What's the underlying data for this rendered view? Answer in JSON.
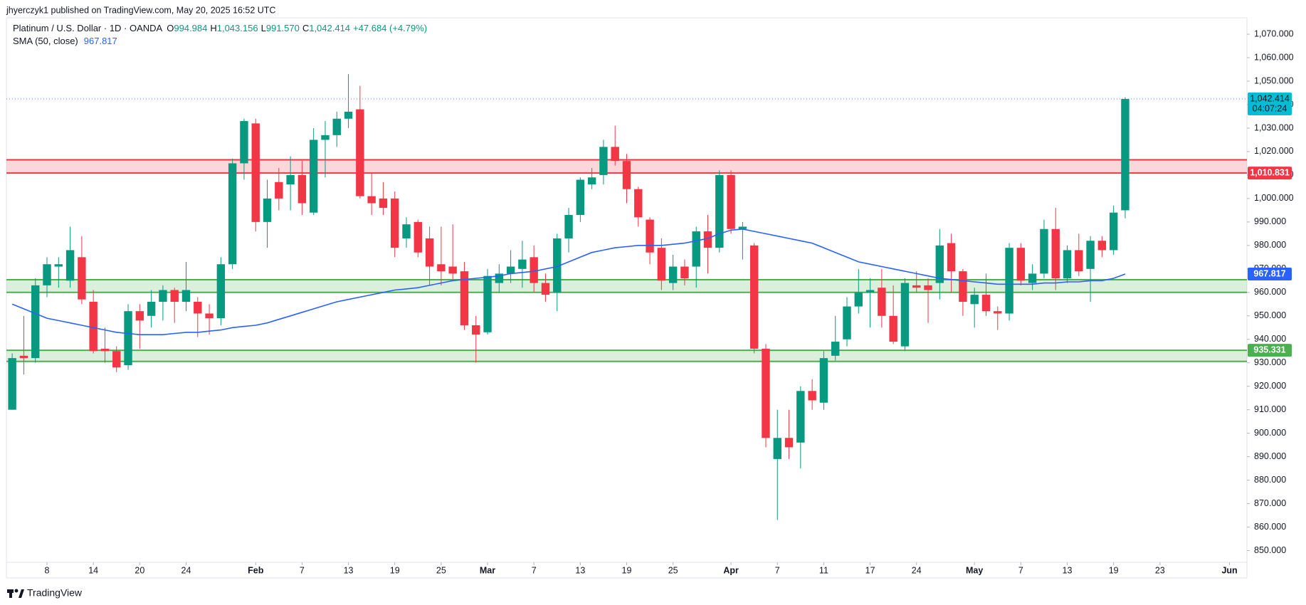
{
  "publisher_line": "jhyerczyk1 published on TradingView.com, May 20, 2025 16:52 UTC",
  "footer": "TradingView",
  "chart_data": {
    "type": "candlestick",
    "title": "Platinum / U.S. Dollar · 1D · OANDA",
    "ohlc_legend": [
      {
        "key": "O",
        "value": "994.984"
      },
      {
        "key": "H",
        "value": "1,043.156"
      },
      {
        "key": "L",
        "value": "991.570"
      },
      {
        "key": "C",
        "value": "1,042.414"
      }
    ],
    "change_label": "+47.684 (+4.79%)",
    "up_color": "#089981",
    "down_color": "#f23645",
    "open": [
      910,
      933,
      932,
      963,
      971,
      965,
      975,
      956,
      936,
      935,
      929,
      952,
      950,
      956,
      961,
      956,
      956,
      951,
      949,
      972,
      1015,
      1032,
      990,
      1007,
      1006,
      1010,
      994,
      1025,
      1027,
      1034,
      1038,
      1001,
      1000,
      1000,
      983,
      990,
      983,
      972,
      971,
      969,
      946,
      943,
      964,
      968,
      970,
      975,
      964,
      960,
      983,
      993,
      1006,
      1010,
      1022,
      1016,
      1004,
      991,
      979,
      964,
      971,
      971,
      986,
      979,
      1010,
      987,
      980,
      936,
      889,
      898,
      896,
      918,
      913,
      933,
      940,
      954,
      960,
      962,
      950,
      937,
      963,
      963,
      964,
      981,
      969,
      955,
      959,
      952,
      951,
      979,
      964,
      968,
      987,
      966,
      978,
      970,
      982,
      978,
      994.984
    ],
    "high": [
      934,
      950,
      966,
      975,
      975,
      988,
      984,
      961,
      945,
      937,
      955,
      955,
      961,
      963,
      962,
      973,
      958,
      955,
      975,
      1017,
      1034,
      1034,
      1008,
      1013,
      1018,
      1016,
      1030,
      1033,
      1037,
      1053,
      1048,
      1011,
      1007,
      1003,
      992,
      991,
      988,
      988,
      989,
      973,
      950,
      970,
      972,
      978,
      982,
      980,
      968,
      985,
      996,
      1009,
      1013,
      1025,
      1031,
      1019,
      1005,
      992,
      983,
      976,
      974,
      988,
      993,
      1012,
      1012,
      990,
      981,
      938,
      910,
      910,
      920,
      923,
      935,
      950,
      958,
      970,
      966,
      970,
      963,
      966,
      969,
      966,
      987,
      985,
      970,
      962,
      968,
      954,
      981,
      981,
      972,
      991,
      996,
      980,
      985,
      984,
      984,
      997,
      1043.156
    ],
    "low": [
      910,
      925,
      930,
      958,
      962,
      962,
      955,
      934,
      930,
      926,
      927,
      936,
      945,
      948,
      947,
      952,
      941,
      942,
      946,
      970,
      1008,
      986,
      979,
      995,
      995,
      993,
      993,
      1009,
      1022,
      1030,
      1000,
      993,
      993,
      975,
      979,
      975,
      963,
      963,
      965,
      944,
      930,
      942,
      960,
      964,
      962,
      960,
      956,
      952,
      977,
      990,
      1004,
      1006,
      1014,
      998,
      988,
      972,
      961,
      961,
      963,
      962,
      968,
      977,
      985,
      974,
      934,
      894,
      863,
      889,
      885,
      910,
      910,
      931,
      937,
      951,
      945,
      945,
      938,
      935,
      960,
      947,
      957,
      960,
      950,
      945,
      950,
      944,
      948,
      963,
      961,
      966,
      961,
      964,
      967,
      956,
      975,
      976,
      991.57
    ],
    "close": [
      932,
      932,
      963,
      972,
      972,
      978,
      957,
      935,
      935,
      928,
      952,
      948,
      956,
      961,
      956,
      961,
      951,
      949,
      972,
      1015,
      1033,
      990,
      1000,
      1000,
      1010,
      998,
      1025,
      1027,
      1034,
      1037,
      1001,
      998,
      996,
      979,
      989,
      977,
      971,
      969,
      968,
      946,
      942,
      967,
      968,
      971,
      974,
      964,
      959,
      983,
      993,
      1008,
      1009,
      1022,
      1016,
      1004,
      992,
      977,
      965,
      971,
      966,
      986,
      979,
      1010,
      987,
      988,
      936,
      898,
      898,
      894,
      918,
      914,
      932,
      939,
      954,
      960,
      961,
      950,
      939,
      964,
      962,
      961,
      980,
      969,
      956,
      959,
      952,
      951,
      979,
      965,
      968,
      987,
      966,
      978,
      969,
      982,
      978,
      994,
      1042.414
    ],
    "sma": {
      "name": "SMA (50, close)",
      "value_label": "967.817",
      "color": "#2962ff",
      "values": [
        955,
        953,
        951,
        949,
        948,
        947,
        946,
        945,
        944,
        943,
        942.5,
        942,
        942,
        942,
        942.5,
        943,
        943,
        943.5,
        944,
        945,
        945.5,
        946,
        947,
        948.5,
        950,
        951.5,
        953,
        954.5,
        956,
        957,
        958,
        959,
        960,
        961,
        961.5,
        962,
        963,
        964,
        965,
        965.5,
        966,
        966.5,
        967,
        968,
        968.5,
        969,
        970,
        971,
        973,
        975,
        977,
        978,
        979,
        979.5,
        980,
        980,
        980,
        980.5,
        981,
        982,
        983,
        985,
        986.5,
        987,
        986,
        985,
        984,
        983,
        982,
        981,
        979,
        977,
        975,
        973,
        972,
        971,
        970,
        969,
        968,
        967,
        966,
        965.5,
        965,
        964.5,
        964,
        963.5,
        963.5,
        963.5,
        963.5,
        964,
        964,
        964.5,
        964.5,
        965,
        965,
        966,
        967.817
      ]
    },
    "zones": [
      {
        "bottom": 1010.831,
        "top": 1016.5,
        "color": "#f23645",
        "label": "1,010.831",
        "label_at": "bottom"
      },
      {
        "bottom": 960,
        "top": 965.4,
        "color": "#4caf50",
        "label_at": "none"
      },
      {
        "bottom": 930.6,
        "top": 935.331,
        "color": "#4caf50",
        "label": "935.331",
        "label_at": "top"
      }
    ],
    "last_price": {
      "value": 1042.414,
      "label": "1,042.414",
      "countdown": "04:07:24",
      "color": "#00bcd4"
    },
    "xlim": [
      -0.5,
      106.5
    ],
    "xticks": [
      {
        "value": 3,
        "label": "8"
      },
      {
        "value": 7,
        "label": "14"
      },
      {
        "value": 11,
        "label": "20"
      },
      {
        "value": 15,
        "label": "24"
      },
      {
        "value": 21,
        "label": "Feb"
      },
      {
        "value": 25,
        "label": "7"
      },
      {
        "value": 29,
        "label": "13"
      },
      {
        "value": 33,
        "label": "19"
      },
      {
        "value": 37,
        "label": "25"
      },
      {
        "value": 41,
        "label": "Mar"
      },
      {
        "value": 45,
        "label": "7"
      },
      {
        "value": 49,
        "label": "13"
      },
      {
        "value": 53,
        "label": "19"
      },
      {
        "value": 57,
        "label": "25"
      },
      {
        "value": 62,
        "label": "Apr"
      },
      {
        "value": 66,
        "label": "7"
      },
      {
        "value": 70,
        "label": "11"
      },
      {
        "value": 74,
        "label": "17"
      },
      {
        "value": 78,
        "label": "24"
      },
      {
        "value": 83,
        "label": "May"
      },
      {
        "value": 87,
        "label": "7"
      },
      {
        "value": 91,
        "label": "13"
      },
      {
        "value": 95,
        "label": "19"
      },
      {
        "value": 99,
        "label": "23"
      },
      {
        "value": 105,
        "label": "Jun"
      }
    ],
    "ylim": [
      845,
      1077
    ],
    "yticks": [
      {
        "value": 850,
        "label": "850.000"
      },
      {
        "value": 860,
        "label": "860.000"
      },
      {
        "value": 870,
        "label": "870.000"
      },
      {
        "value": 880,
        "label": "880.000"
      },
      {
        "value": 890,
        "label": "890.000"
      },
      {
        "value": 900,
        "label": "900.000"
      },
      {
        "value": 910,
        "label": "910.000"
      },
      {
        "value": 920,
        "label": "920.000"
      },
      {
        "value": 930,
        "label": "930.000"
      },
      {
        "value": 940,
        "label": "940.000"
      },
      {
        "value": 950,
        "label": "950.000"
      },
      {
        "value": 960,
        "label": "960.000"
      },
      {
        "value": 970,
        "label": "970.000"
      },
      {
        "value": 980,
        "label": "980.000"
      },
      {
        "value": 990,
        "label": "990.000"
      },
      {
        "value": 1000,
        "label": "1,000.000"
      },
      {
        "value": 1010,
        "label": "1,010.000"
      },
      {
        "value": 1020,
        "label": "1,020.000"
      },
      {
        "value": 1030,
        "label": "1,030.000"
      },
      {
        "value": 1040,
        "label": "1,040.000"
      },
      {
        "value": 1050,
        "label": "1,050.000"
      },
      {
        "value": 1060,
        "label": "1,060.000"
      },
      {
        "value": 1070,
        "label": "1,070.000"
      }
    ],
    "grid": false
  }
}
